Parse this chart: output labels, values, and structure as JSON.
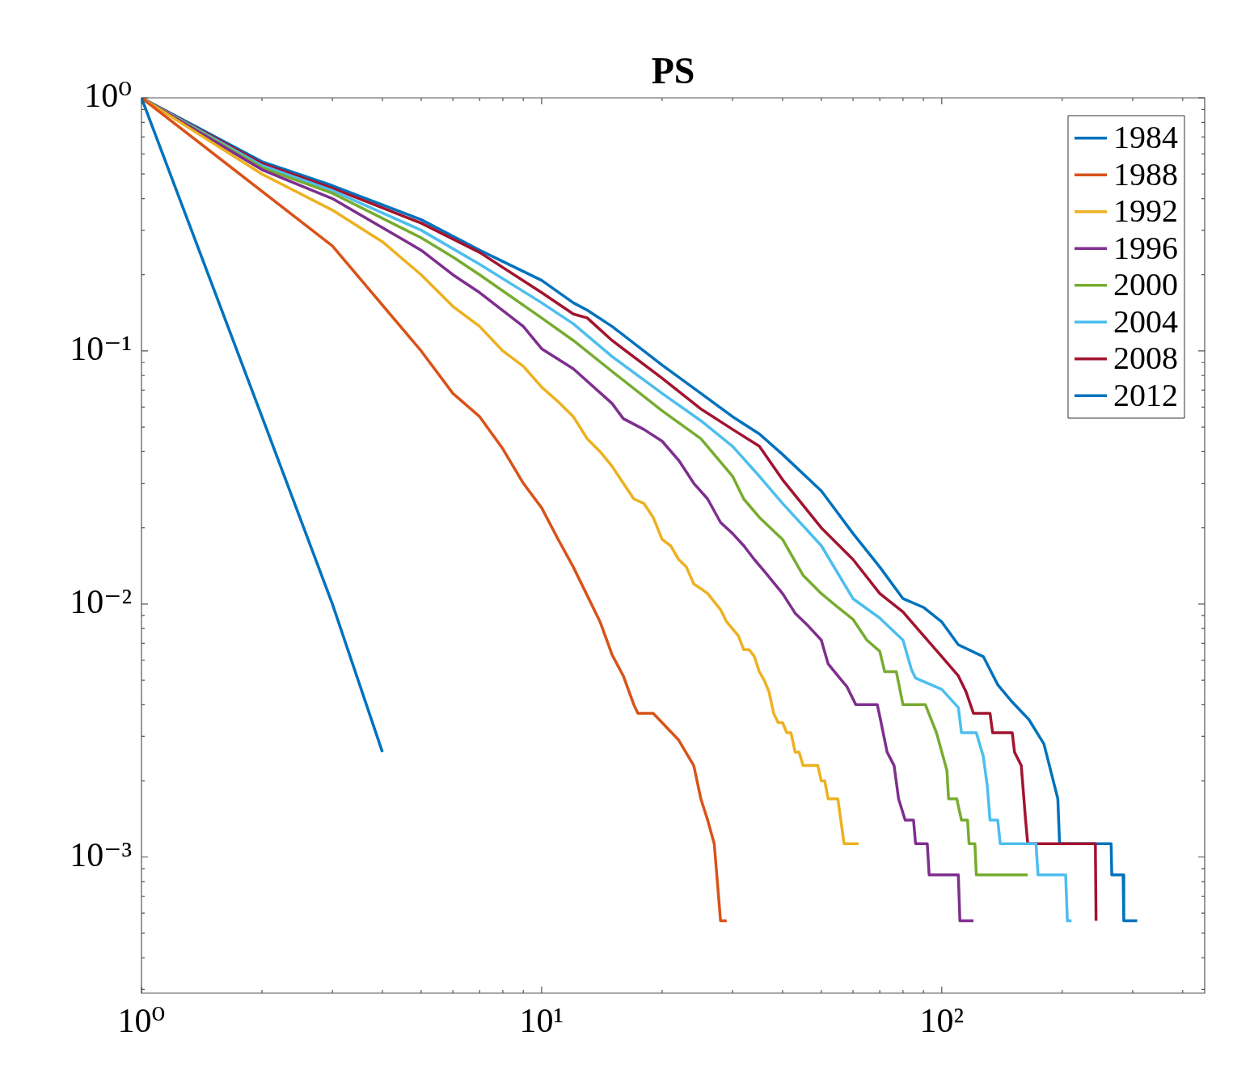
{
  "chart_data": {
    "type": "line",
    "title": "PS",
    "log": "xy",
    "legend": "top right",
    "line_style": "solid",
    "xlim": [
      1,
      454
    ],
    "ylim": [
      0.00029,
      1
    ],
    "xticks": [
      {
        "value": 1,
        "label": "10⁰"
      },
      {
        "value": 2,
        "label": null
      },
      {
        "value": 3,
        "label": null
      },
      {
        "value": 4,
        "label": null
      },
      {
        "value": 5,
        "label": null
      },
      {
        "value": 6,
        "label": null
      },
      {
        "value": 7,
        "label": null
      },
      {
        "value": 8,
        "label": null
      },
      {
        "value": 9,
        "label": null
      },
      {
        "value": 10,
        "label": "10¹"
      },
      {
        "value": 20,
        "label": null
      },
      {
        "value": 30,
        "label": null
      },
      {
        "value": 40,
        "label": null
      },
      {
        "value": 50,
        "label": null
      },
      {
        "value": 60,
        "label": null
      },
      {
        "value": 70,
        "label": null
      },
      {
        "value": 80,
        "label": null
      },
      {
        "value": 90,
        "label": null
      },
      {
        "value": 100,
        "label": "10²"
      },
      {
        "value": 200,
        "label": null
      },
      {
        "value": 300,
        "label": null
      },
      {
        "value": 400,
        "label": null
      }
    ],
    "yticks": [
      {
        "value": 0.0003,
        "label": null
      },
      {
        "value": 0.0004,
        "label": null
      },
      {
        "value": 0.0005,
        "label": null
      },
      {
        "value": 0.0006,
        "label": null
      },
      {
        "value": 0.0007,
        "label": null
      },
      {
        "value": 0.0008,
        "label": null
      },
      {
        "value": 0.0009,
        "label": null
      },
      {
        "value": 0.001,
        "label": "10⁻³"
      },
      {
        "value": 0.002,
        "label": null
      },
      {
        "value": 0.003,
        "label": null
      },
      {
        "value": 0.004,
        "label": null
      },
      {
        "value": 0.005,
        "label": null
      },
      {
        "value": 0.006,
        "label": null
      },
      {
        "value": 0.007,
        "label": null
      },
      {
        "value": 0.008,
        "label": null
      },
      {
        "value": 0.009,
        "label": null
      },
      {
        "value": 0.01,
        "label": "10⁻²"
      },
      {
        "value": 0.02,
        "label": null
      },
      {
        "value": 0.03,
        "label": null
      },
      {
        "value": 0.04,
        "label": null
      },
      {
        "value": 0.05,
        "label": null
      },
      {
        "value": 0.06,
        "label": null
      },
      {
        "value": 0.07,
        "label": null
      },
      {
        "value": 0.08,
        "label": null
      },
      {
        "value": 0.09,
        "label": null
      },
      {
        "value": 0.1,
        "label": "10⁻¹"
      },
      {
        "value": 0.2,
        "label": null
      },
      {
        "value": 0.3,
        "label": null
      },
      {
        "value": 0.4,
        "label": null
      },
      {
        "value": 0.5,
        "label": null
      },
      {
        "value": 0.6,
        "label": null
      },
      {
        "value": 0.7,
        "label": null
      },
      {
        "value": 0.8,
        "label": null
      },
      {
        "value": 0.9,
        "label": null
      },
      {
        "value": 1,
        "label": "10⁰"
      }
    ],
    "series": [
      {
        "name": "1984",
        "color": "#0072bd",
        "x": [
          1,
          2,
          3,
          4
        ],
        "values": [
          1,
          0.055,
          0.01,
          0.0026
        ]
      },
      {
        "name": "1988",
        "color": "#d95319",
        "x": [
          1,
          3,
          5,
          6,
          7,
          8,
          9,
          10,
          11,
          12,
          14,
          15,
          16,
          17,
          17.4,
          19,
          20,
          22,
          24,
          25,
          26,
          27,
          28,
          29
        ],
        "values": [
          1,
          0.26,
          0.1,
          0.068,
          0.055,
          0.041,
          0.03,
          0.024,
          0.018,
          0.014,
          0.0085,
          0.0063,
          0.0052,
          0.004,
          0.0037,
          0.0037,
          0.0034,
          0.0029,
          0.0023,
          0.0017,
          0.0014,
          0.00113,
          0.00056,
          0.00056
        ]
      },
      {
        "name": "1992",
        "color": "#edb120",
        "x": [
          1,
          2,
          3,
          4,
          5,
          6,
          7,
          8,
          9,
          10,
          11,
          12,
          13,
          14,
          15,
          16,
          17,
          18,
          19,
          20,
          21,
          22,
          23,
          24,
          25,
          26,
          28,
          29,
          31,
          32,
          33,
          34,
          35,
          36,
          37,
          38,
          39,
          40,
          41,
          42,
          43,
          44,
          45,
          49,
          50,
          51,
          52,
          55,
          57,
          62
        ],
        "values": [
          1,
          0.5,
          0.36,
          0.27,
          0.2,
          0.15,
          0.125,
          0.1,
          0.087,
          0.072,
          0.063,
          0.055,
          0.045,
          0.04,
          0.035,
          0.03,
          0.026,
          0.025,
          0.022,
          0.018,
          0.017,
          0.015,
          0.014,
          0.012,
          0.0115,
          0.011,
          0.0095,
          0.0085,
          0.0075,
          0.0066,
          0.0066,
          0.0062,
          0.0054,
          0.005,
          0.0045,
          0.0037,
          0.0034,
          0.0034,
          0.0031,
          0.0031,
          0.0026,
          0.0026,
          0.0023,
          0.0023,
          0.002,
          0.002,
          0.0017,
          0.0017,
          0.00113,
          0.00113
        ]
      },
      {
        "name": "1996",
        "color": "#7e2f8e",
        "x": [
          1,
          2,
          3,
          5,
          6,
          7,
          9,
          10,
          12,
          15,
          16,
          18,
          20,
          22,
          24,
          26,
          28,
          30,
          32,
          34,
          36,
          40,
          43,
          46,
          50,
          52,
          55,
          58,
          61,
          69,
          70,
          73,
          76,
          78,
          81,
          85,
          86,
          92,
          93,
          110,
          111,
          120
        ],
        "values": [
          1,
          0.52,
          0.4,
          0.25,
          0.2,
          0.17,
          0.125,
          0.102,
          0.085,
          0.062,
          0.054,
          0.049,
          0.044,
          0.037,
          0.03,
          0.026,
          0.021,
          0.019,
          0.017,
          0.015,
          0.0135,
          0.011,
          0.0092,
          0.0083,
          0.0072,
          0.0058,
          0.0052,
          0.0047,
          0.004,
          0.004,
          0.0036,
          0.0026,
          0.0023,
          0.0017,
          0.0014,
          0.0014,
          0.00113,
          0.00113,
          0.00085,
          0.00085,
          0.00056,
          0.00056
        ]
      },
      {
        "name": "2000",
        "color": "#77ac30",
        "x": [
          1,
          2,
          3,
          5,
          6,
          7,
          10,
          12,
          15,
          20,
          25,
          30,
          32,
          35,
          40,
          45,
          50,
          55,
          60,
          65,
          70,
          72,
          77,
          80,
          91,
          97,
          103,
          104,
          109,
          112,
          116,
          117,
          121,
          122,
          164
        ],
        "values": [
          1,
          0.53,
          0.42,
          0.28,
          0.235,
          0.2,
          0.135,
          0.11,
          0.083,
          0.058,
          0.045,
          0.032,
          0.026,
          0.022,
          0.018,
          0.013,
          0.011,
          0.0097,
          0.0087,
          0.0072,
          0.0065,
          0.0054,
          0.0054,
          0.004,
          0.004,
          0.0031,
          0.0022,
          0.0017,
          0.0017,
          0.0014,
          0.0014,
          0.00113,
          0.00113,
          0.00085,
          0.00085
        ]
      },
      {
        "name": "2004",
        "color": "#4dbeee",
        "x": [
          1,
          2,
          3,
          5,
          7,
          10,
          12,
          13,
          15,
          20,
          25,
          30,
          35,
          40,
          50,
          60,
          70,
          80,
          84,
          86,
          100,
          110,
          112,
          122,
          127,
          130,
          132,
          138,
          140,
          172,
          174,
          204,
          206,
          211
        ],
        "values": [
          1,
          0.54,
          0.43,
          0.3,
          0.22,
          0.155,
          0.128,
          0.115,
          0.095,
          0.068,
          0.053,
          0.042,
          0.032,
          0.025,
          0.017,
          0.0105,
          0.0088,
          0.0072,
          0.0055,
          0.0051,
          0.0046,
          0.0039,
          0.0031,
          0.0031,
          0.0025,
          0.0019,
          0.0014,
          0.0014,
          0.00113,
          0.00113,
          0.00085,
          0.00085,
          0.00056,
          0.00056
        ]
      },
      {
        "name": "2008",
        "color": "#a2142f",
        "x": [
          1,
          2,
          3,
          5,
          7,
          10,
          12,
          13,
          15,
          20,
          25,
          30,
          35,
          40,
          50,
          60,
          70,
          80,
          90,
          100,
          110,
          115,
          120,
          132,
          134,
          150,
          152,
          158,
          162,
          164,
          242,
          243
        ],
        "values": [
          1,
          0.55,
          0.44,
          0.32,
          0.245,
          0.17,
          0.14,
          0.135,
          0.11,
          0.078,
          0.059,
          0.049,
          0.042,
          0.031,
          0.02,
          0.015,
          0.011,
          0.0093,
          0.0075,
          0.0062,
          0.0052,
          0.0045,
          0.0037,
          0.0037,
          0.0031,
          0.0031,
          0.0026,
          0.0023,
          0.0014,
          0.00113,
          0.00113,
          0.00056
        ]
      },
      {
        "name": "2012",
        "color": "#0072bd",
        "x": [
          1,
          2,
          3,
          5,
          7,
          10,
          12,
          13,
          15,
          20,
          25,
          30,
          35,
          40,
          50,
          60,
          70,
          80,
          90,
          100,
          110,
          127,
          138,
          150,
          165,
          180,
          195,
          197,
          265,
          266,
          284,
          285,
          308
        ],
        "values": [
          1,
          0.56,
          0.45,
          0.33,
          0.25,
          0.19,
          0.155,
          0.145,
          0.125,
          0.088,
          0.068,
          0.055,
          0.047,
          0.039,
          0.028,
          0.019,
          0.014,
          0.0105,
          0.0097,
          0.0085,
          0.0069,
          0.0062,
          0.0048,
          0.0041,
          0.0035,
          0.0028,
          0.0017,
          0.00113,
          0.00113,
          0.00085,
          0.00085,
          0.00056,
          0.00056
        ]
      }
    ]
  }
}
